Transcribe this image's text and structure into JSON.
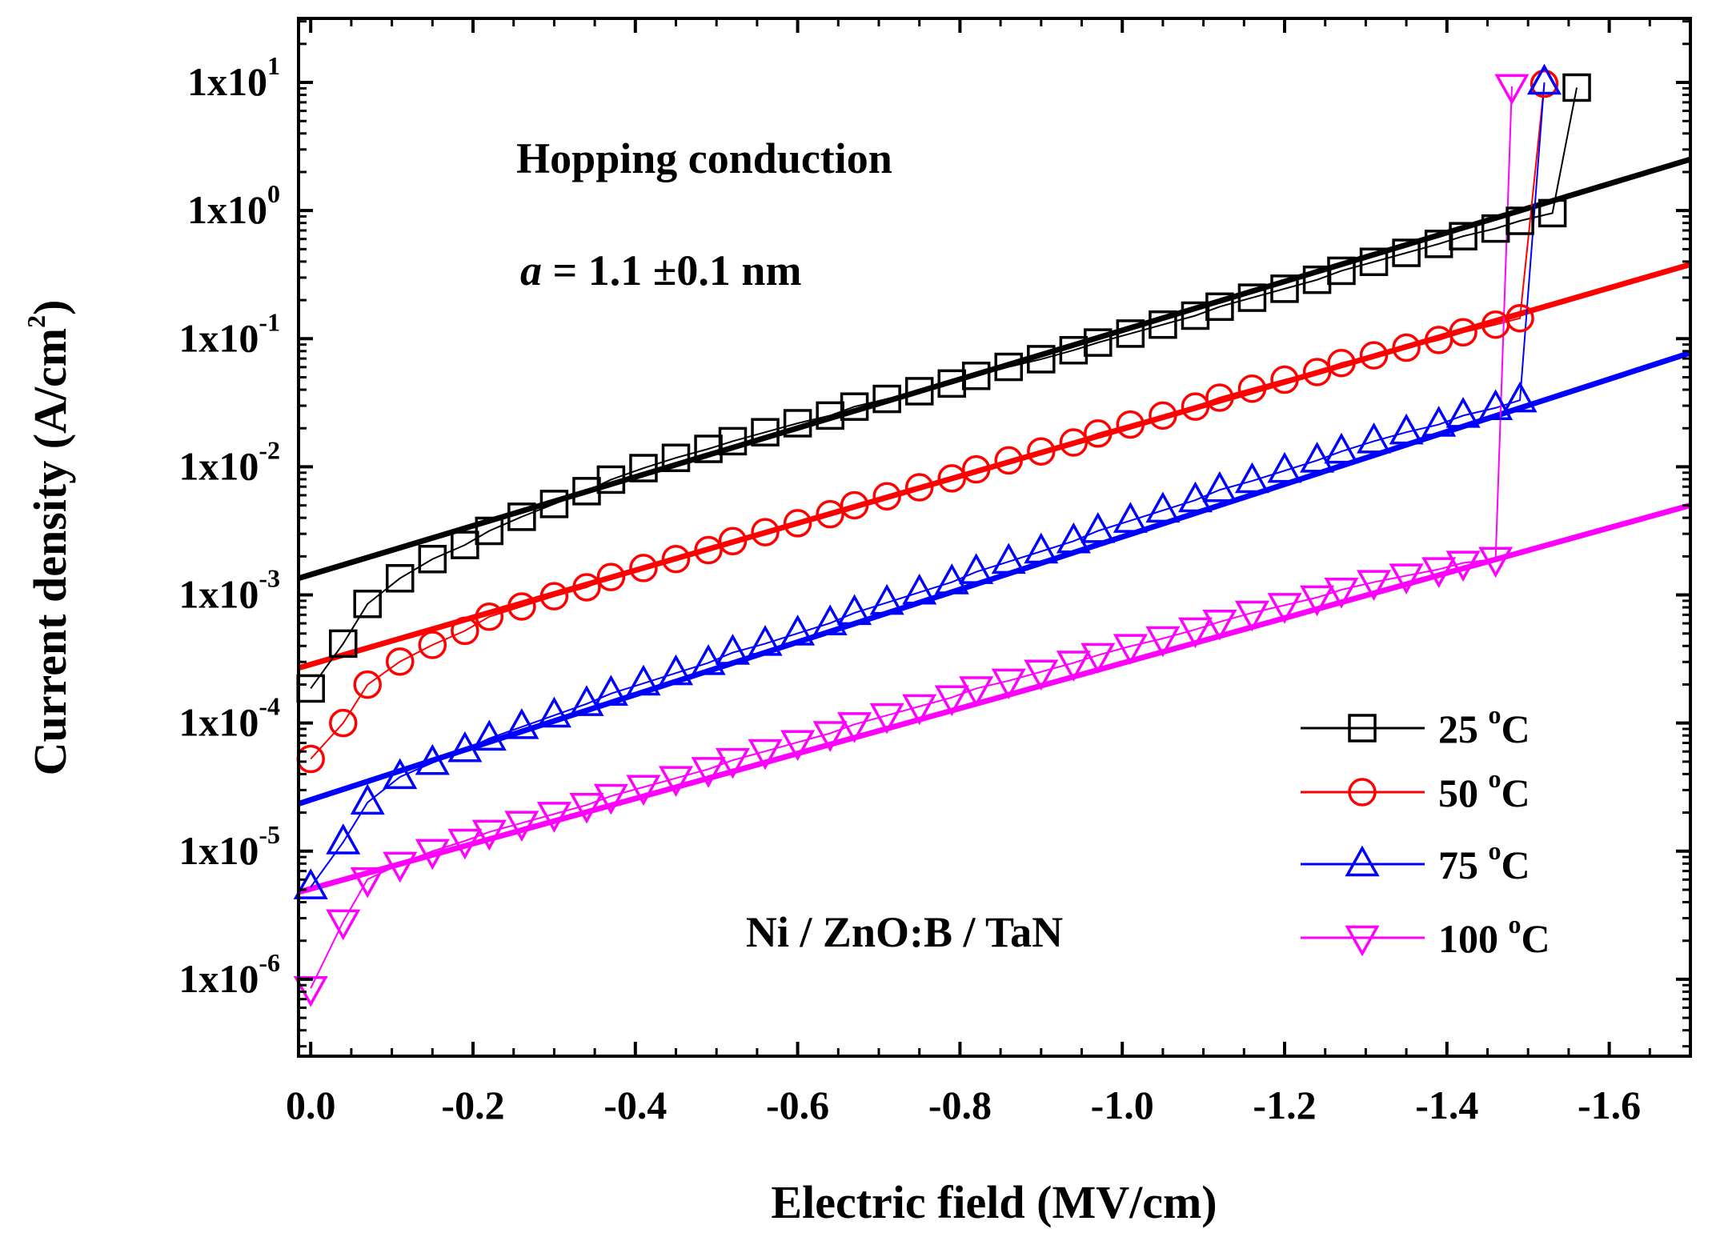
{
  "chart_data": {
    "type": "scatter",
    "title": "",
    "xlabel": "Electric field (MV/cm)",
    "ylabel_main": "Current density (A/cm",
    "ylabel_sup": "2",
    "ylabel_close": ")",
    "xlim": [
      0.015,
      -1.7
    ],
    "ylim_log10": [
      -6.6,
      1.5
    ],
    "xticks": [
      {
        "value": 0.0,
        "label": "0.0"
      },
      {
        "value": -0.2,
        "label": "-0.2"
      },
      {
        "value": -0.4,
        "label": "-0.4"
      },
      {
        "value": -0.6,
        "label": "-0.6"
      },
      {
        "value": -0.8,
        "label": "-0.8"
      },
      {
        "value": -1.0,
        "label": "-1.0"
      },
      {
        "value": -1.2,
        "label": "-1.2"
      },
      {
        "value": -1.4,
        "label": "-1.4"
      },
      {
        "value": -1.6,
        "label": "-1.6"
      }
    ],
    "yticks": [
      {
        "exp": 1,
        "base": "1x10",
        "sup": "1"
      },
      {
        "exp": 0,
        "base": "1x10",
        "sup": "0"
      },
      {
        "exp": -1,
        "base": "1x10",
        "sup": "-1"
      },
      {
        "exp": -2,
        "base": "1x10",
        "sup": "-2"
      },
      {
        "exp": -3,
        "base": "1x10",
        "sup": "-3"
      },
      {
        "exp": -4,
        "base": "1x10",
        "sup": "-4"
      },
      {
        "exp": -5,
        "base": "1x10",
        "sup": "-5"
      },
      {
        "exp": -6,
        "base": "1x10",
        "sup": "-6"
      }
    ],
    "annotations": {
      "model": "Hopping conduction",
      "param_symbol": "a",
      "param_value": " = 1.1 ±0.1 nm",
      "device": "Ni / ZnO:B / TaN"
    },
    "fit_lines": [
      {
        "series": "25 oC",
        "color": "#000000",
        "x": [
          0.015,
          -1.7
        ],
        "log10y": [
          -2.87,
          0.4
        ]
      },
      {
        "series": "50 oC",
        "color": "#ff0000",
        "x": [
          0.015,
          -1.7
        ],
        "log10y": [
          -3.57,
          -0.42
        ]
      },
      {
        "series": "75 oC",
        "color": "#0000ff",
        "x": [
          0.015,
          -1.7
        ],
        "log10y": [
          -4.63,
          -1.11
        ]
      },
      {
        "series": "100 oC",
        "color": "#ff00ff",
        "x": [
          0.015,
          -1.7
        ],
        "log10y": [
          -5.32,
          -2.3
        ]
      }
    ],
    "series": [
      {
        "name": "25 oC",
        "legend_temp": "25",
        "color": "#000000",
        "marker": "square",
        "x": [
          0.0,
          -0.04,
          -0.07,
          -0.11,
          -0.15,
          -0.19,
          -0.22,
          -0.26,
          -0.3,
          -0.34,
          -0.37,
          -0.41,
          -0.45,
          -0.49,
          -0.52,
          -0.56,
          -0.6,
          -0.64,
          -0.67,
          -0.71,
          -0.75,
          -0.79,
          -0.82,
          -0.86,
          -0.9,
          -0.94,
          -0.97,
          -1.01,
          -1.05,
          -1.09,
          -1.12,
          -1.16,
          -1.2,
          -1.24,
          -1.27,
          -1.31,
          -1.35,
          -1.39,
          -1.42,
          -1.46,
          -1.49,
          -1.53,
          -1.56
        ],
        "log10y": [
          -3.73,
          -3.38,
          -3.07,
          -2.87,
          -2.72,
          -2.61,
          -2.5,
          -2.39,
          -2.29,
          -2.19,
          -2.1,
          -2.01,
          -1.93,
          -1.86,
          -1.8,
          -1.73,
          -1.66,
          -1.6,
          -1.53,
          -1.47,
          -1.41,
          -1.35,
          -1.29,
          -1.22,
          -1.16,
          -1.09,
          -1.03,
          -0.96,
          -0.89,
          -0.82,
          -0.75,
          -0.68,
          -0.61,
          -0.54,
          -0.47,
          -0.4,
          -0.33,
          -0.26,
          -0.2,
          -0.14,
          -0.08,
          -0.02,
          0.96
        ]
      },
      {
        "name": "50 oC",
        "legend_temp": "50",
        "color": "#ff0000",
        "marker": "circle",
        "x": [
          0.0,
          -0.04,
          -0.07,
          -0.11,
          -0.15,
          -0.19,
          -0.22,
          -0.26,
          -0.3,
          -0.34,
          -0.37,
          -0.41,
          -0.45,
          -0.49,
          -0.52,
          -0.56,
          -0.6,
          -0.64,
          -0.67,
          -0.71,
          -0.75,
          -0.79,
          -0.82,
          -0.86,
          -0.9,
          -0.94,
          -0.97,
          -1.01,
          -1.05,
          -1.09,
          -1.12,
          -1.16,
          -1.2,
          -1.24,
          -1.27,
          -1.31,
          -1.35,
          -1.39,
          -1.42,
          -1.46,
          -1.49,
          -1.52
        ],
        "log10y": [
          -4.28,
          -4.0,
          -3.7,
          -3.52,
          -3.39,
          -3.28,
          -3.17,
          -3.09,
          -3.01,
          -2.94,
          -2.86,
          -2.79,
          -2.72,
          -2.65,
          -2.58,
          -2.51,
          -2.44,
          -2.37,
          -2.3,
          -2.23,
          -2.16,
          -2.09,
          -2.02,
          -1.95,
          -1.88,
          -1.81,
          -1.74,
          -1.67,
          -1.6,
          -1.53,
          -1.46,
          -1.39,
          -1.32,
          -1.26,
          -1.19,
          -1.13,
          -1.07,
          -1.01,
          -0.95,
          -0.89,
          -0.84,
          0.99
        ]
      },
      {
        "name": "75 oC",
        "legend_temp": "75",
        "color": "#0000ff",
        "marker": "triangle-up",
        "x": [
          0.0,
          -0.04,
          -0.07,
          -0.11,
          -0.15,
          -0.19,
          -0.22,
          -0.26,
          -0.3,
          -0.34,
          -0.37,
          -0.41,
          -0.45,
          -0.49,
          -0.52,
          -0.56,
          -0.6,
          -0.64,
          -0.67,
          -0.71,
          -0.75,
          -0.79,
          -0.82,
          -0.86,
          -0.9,
          -0.94,
          -0.97,
          -1.01,
          -1.05,
          -1.09,
          -1.12,
          -1.16,
          -1.2,
          -1.24,
          -1.27,
          -1.31,
          -1.35,
          -1.39,
          -1.42,
          -1.46,
          -1.49,
          -1.52
        ],
        "log10y": [
          -5.28,
          -4.93,
          -4.62,
          -4.42,
          -4.31,
          -4.21,
          -4.12,
          -4.03,
          -3.94,
          -3.85,
          -3.77,
          -3.69,
          -3.61,
          -3.53,
          -3.45,
          -3.38,
          -3.3,
          -3.22,
          -3.14,
          -3.06,
          -2.98,
          -2.9,
          -2.82,
          -2.74,
          -2.66,
          -2.58,
          -2.5,
          -2.42,
          -2.34,
          -2.26,
          -2.18,
          -2.11,
          -2.03,
          -1.95,
          -1.88,
          -1.8,
          -1.73,
          -1.67,
          -1.6,
          -1.54,
          -1.48,
          1.0
        ]
      },
      {
        "name": "100 oC",
        "legend_temp": "100",
        "color": "#ff00ff",
        "marker": "triangle-down",
        "x": [
          0.0,
          -0.04,
          -0.07,
          -0.11,
          -0.15,
          -0.19,
          -0.22,
          -0.26,
          -0.3,
          -0.34,
          -0.37,
          -0.41,
          -0.45,
          -0.49,
          -0.52,
          -0.56,
          -0.6,
          -0.64,
          -0.67,
          -0.71,
          -0.75,
          -0.79,
          -0.82,
          -0.86,
          -0.9,
          -0.94,
          -0.97,
          -1.01,
          -1.05,
          -1.09,
          -1.12,
          -1.16,
          -1.2,
          -1.24,
          -1.27,
          -1.31,
          -1.35,
          -1.39,
          -1.42,
          -1.46,
          -1.48
        ],
        "log10y": [
          -6.07,
          -5.55,
          -5.22,
          -5.1,
          -5.0,
          -4.92,
          -4.85,
          -4.78,
          -4.71,
          -4.64,
          -4.57,
          -4.5,
          -4.43,
          -4.36,
          -4.29,
          -4.22,
          -4.15,
          -4.08,
          -4.01,
          -3.94,
          -3.87,
          -3.8,
          -3.73,
          -3.67,
          -3.6,
          -3.53,
          -3.47,
          -3.4,
          -3.34,
          -3.27,
          -3.21,
          -3.14,
          -3.08,
          -3.02,
          -2.96,
          -2.9,
          -2.85,
          -2.8,
          -2.75,
          -2.72,
          0.97
        ]
      }
    ],
    "legend": {
      "position": "right-center",
      "unit_sup": "o",
      "unit_letter": "C"
    }
  }
}
